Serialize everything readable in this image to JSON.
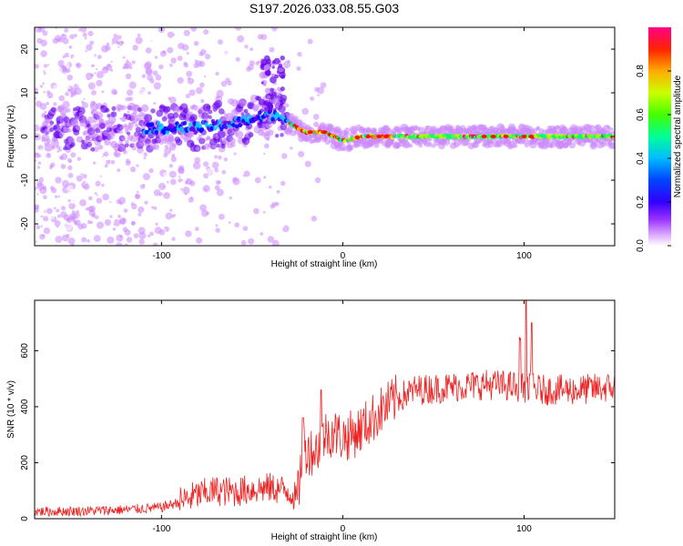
{
  "chart_data": [
    {
      "type": "heatmap",
      "title": "S197.2026.033.08.55.G03",
      "xlabel": "Height of straight line (km)",
      "ylabel": "Frequency (Hz)",
      "xlim": [
        -170,
        150
      ],
      "ylim": [
        -25,
        25
      ],
      "xticks": [
        -100,
        0,
        100
      ],
      "yticks": [
        -20,
        -10,
        0,
        10,
        20
      ],
      "colorbar": {
        "label": "Normalized spectral amplitude",
        "range": [
          0.0,
          1.0
        ],
        "ticks": [
          "0.0",
          "0.2",
          "0.4",
          "0.6",
          "0.8"
        ],
        "colors": [
          "#ffffff",
          "#cc88ff",
          "#6600ee",
          "#0000ff",
          "#00ccff",
          "#00ff66",
          "#aaff00",
          "#ffff00",
          "#ff8800",
          "#ff0000",
          "#ff0088"
        ]
      },
      "signal_track": [
        {
          "x": -100,
          "y": 2
        },
        {
          "x": -80,
          "y": 2
        },
        {
          "x": -60,
          "y": 3
        },
        {
          "x": -50,
          "y": 4
        },
        {
          "x": -40,
          "y": 5
        },
        {
          "x": -35,
          "y": 5
        },
        {
          "x": -30,
          "y": 3
        },
        {
          "x": -25,
          "y": 2
        },
        {
          "x": -20,
          "y": 1
        },
        {
          "x": -10,
          "y": 1
        },
        {
          "x": -5,
          "y": 0
        },
        {
          "x": 0,
          "y": -1
        },
        {
          "x": 10,
          "y": 0
        },
        {
          "x": 25,
          "y": 0
        },
        {
          "x": 50,
          "y": 0
        },
        {
          "x": 80,
          "y": 0
        },
        {
          "x": 100,
          "y": 0
        },
        {
          "x": 150,
          "y": 0
        }
      ]
    },
    {
      "type": "line",
      "title": "",
      "xlabel": "Height of straight line (km)",
      "ylabel": "SNR (10 * v/v)",
      "xlim": [
        -170,
        150
      ],
      "ylim": [
        0,
        780
      ],
      "xticks": [
        -100,
        0,
        100
      ],
      "yticks": [
        0,
        200,
        400,
        600
      ],
      "color": "#ee2222",
      "envelope": [
        {
          "x": -170,
          "y": 25
        },
        {
          "x": -140,
          "y": 28
        },
        {
          "x": -120,
          "y": 32
        },
        {
          "x": -100,
          "y": 40
        },
        {
          "x": -90,
          "y": 60
        },
        {
          "x": -80,
          "y": 85
        },
        {
          "x": -70,
          "y": 100
        },
        {
          "x": -60,
          "y": 95
        },
        {
          "x": -50,
          "y": 105
        },
        {
          "x": -40,
          "y": 110
        },
        {
          "x": -30,
          "y": 100
        },
        {
          "x": -25,
          "y": 70
        },
        {
          "x": -22,
          "y": 250
        },
        {
          "x": -15,
          "y": 240
        },
        {
          "x": -10,
          "y": 300
        },
        {
          "x": -5,
          "y": 310
        },
        {
          "x": 0,
          "y": 290
        },
        {
          "x": 5,
          "y": 300
        },
        {
          "x": 10,
          "y": 320
        },
        {
          "x": 20,
          "y": 380
        },
        {
          "x": 30,
          "y": 430
        },
        {
          "x": 40,
          "y": 460
        },
        {
          "x": 60,
          "y": 470
        },
        {
          "x": 80,
          "y": 480
        },
        {
          "x": 100,
          "y": 470
        },
        {
          "x": 110,
          "y": 460
        },
        {
          "x": 130,
          "y": 460
        },
        {
          "x": 150,
          "y": 470
        }
      ],
      "peaks": [
        {
          "x": 101,
          "y": 780
        },
        {
          "x": 104,
          "y": 700
        },
        {
          "x": 98,
          "y": 640
        },
        {
          "x": -12,
          "y": 460
        },
        {
          "x": -22,
          "y": 360
        }
      ]
    }
  ]
}
